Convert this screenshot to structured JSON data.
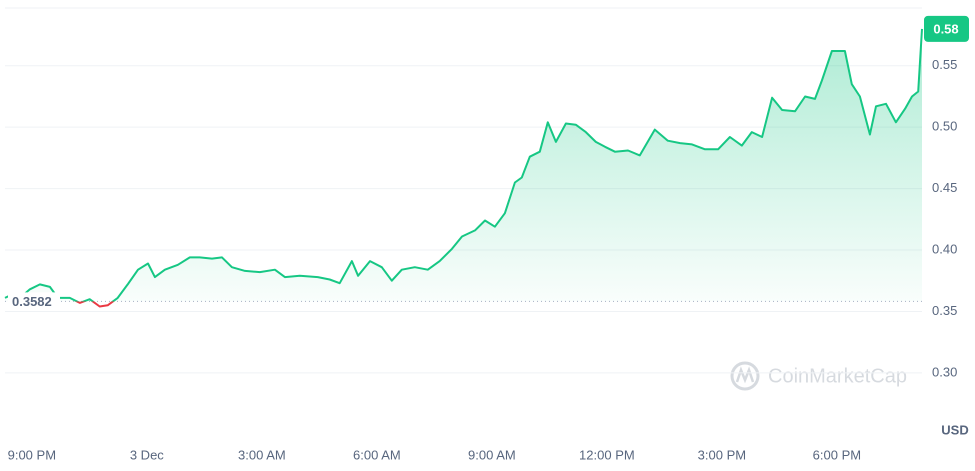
{
  "chart_data": {
    "type": "line",
    "x": [
      -0.7,
      -0.57,
      -0.31,
      -0.05,
      0.21,
      0.47,
      0.68,
      0.99,
      1.25,
      1.51,
      1.77,
      1.98,
      2.24,
      2.5,
      2.77,
      3.03,
      3.21,
      3.47,
      3.81,
      4.12,
      4.38,
      4.7,
      4.96,
      5.22,
      5.56,
      5.95,
      6.34,
      6.6,
      6.99,
      7.46,
      7.77,
      8.03,
      8.35,
      8.51,
      8.82,
      9.13,
      9.39,
      9.65,
      9.99,
      10.33,
      10.64,
      10.96,
      11.22,
      11.56,
      11.82,
      12.08,
      12.34,
      12.6,
      12.78,
      12.99,
      13.25,
      13.46,
      13.67,
      13.93,
      14.19,
      14.45,
      14.71,
      14.95,
      15.21,
      15.55,
      15.86,
      16.25,
      16.59,
      16.91,
      17.22,
      17.56,
      17.9,
      18.21,
      18.52,
      18.78,
      19.05,
      19.31,
      19.57,
      19.91,
      20.17,
      20.43,
      20.61,
      20.87,
      21.21,
      21.39,
      21.6,
      21.86,
      22.02,
      22.28,
      22.54,
      22.78,
      22.96,
      23.12,
      23.22
    ],
    "values": [
      0.361,
      0.363,
      0.361,
      0.368,
      0.372,
      0.37,
      0.361,
      0.361,
      0.357,
      0.36,
      0.354,
      0.355,
      0.361,
      0.372,
      0.384,
      0.389,
      0.378,
      0.384,
      0.388,
      0.394,
      0.394,
      0.393,
      0.394,
      0.386,
      0.383,
      0.382,
      0.384,
      0.378,
      0.379,
      0.378,
      0.376,
      0.373,
      0.391,
      0.379,
      0.391,
      0.386,
      0.375,
      0.384,
      0.386,
      0.384,
      0.391,
      0.401,
      0.411,
      0.416,
      0.424,
      0.419,
      0.43,
      0.455,
      0.459,
      0.476,
      0.48,
      0.504,
      0.488,
      0.503,
      0.502,
      0.496,
      0.488,
      0.484,
      0.48,
      0.481,
      0.477,
      0.498,
      0.489,
      0.487,
      0.486,
      0.482,
      0.482,
      0.492,
      0.485,
      0.496,
      0.492,
      0.524,
      0.514,
      0.513,
      0.525,
      0.523,
      0.538,
      0.562,
      0.562,
      0.535,
      0.525,
      0.494,
      0.517,
      0.519,
      0.504,
      0.515,
      0.525,
      0.529,
      0.58
    ],
    "color": "#16c784",
    "below_color": "#ea3943",
    "baseline": 0.3582,
    "current_price": 0.58,
    "xlim": [
      -0.7,
      23.22
    ],
    "xticks": [
      {
        "value": 0,
        "label": "9:00 PM"
      },
      {
        "value": 3,
        "label": "3 Dec"
      },
      {
        "value": 6,
        "label": "3:00 AM"
      },
      {
        "value": 9,
        "label": "6:00 AM"
      },
      {
        "value": 12,
        "label": "9:00 AM"
      },
      {
        "value": 15,
        "label": "12:00 PM"
      },
      {
        "value": 18,
        "label": "3:00 PM"
      },
      {
        "value": 21,
        "label": "6:00 PM"
      }
    ],
    "ylim": [
      0.247,
      0.597
    ],
    "yticks": [
      {
        "value": 0.3,
        "label": "0.30"
      },
      0.35,
      {
        "value": 0.4,
        "label": "0.40"
      },
      0.45,
      {
        "value": 0.5,
        "label": "0.50"
      },
      0.55
    ],
    "grid": true,
    "currency_label": "USD",
    "watermark": "CoinMarketCap"
  }
}
